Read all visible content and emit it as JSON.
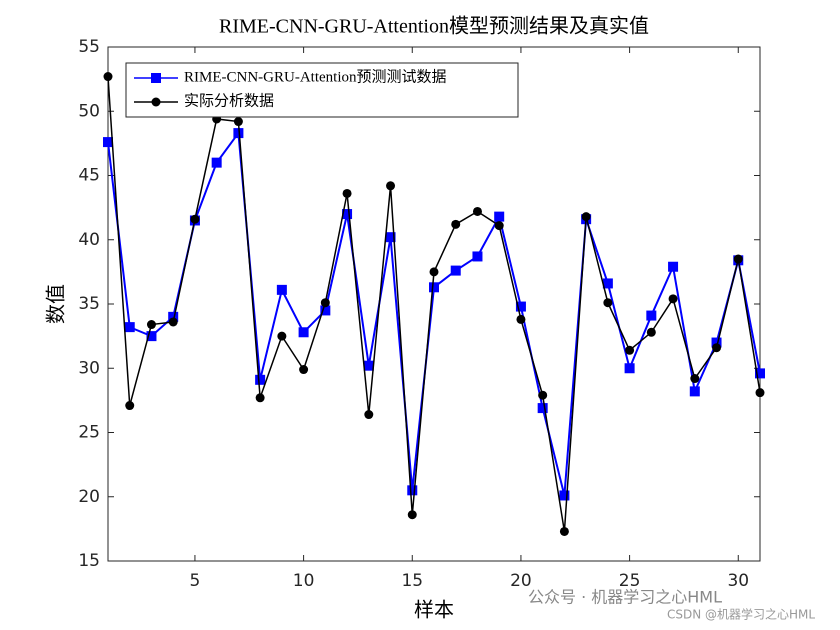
{
  "chart_data": {
    "type": "line",
    "title": "RIME-CNN-GRU-Attention模型预测结果及真实值",
    "x_label": "样本",
    "y_label": "数值",
    "x": [
      1,
      2,
      3,
      4,
      5,
      6,
      7,
      8,
      9,
      10,
      11,
      12,
      13,
      14,
      15,
      16,
      17,
      18,
      19,
      20,
      21,
      22,
      23,
      24,
      25,
      26,
      27,
      28,
      29,
      30,
      31
    ],
    "series": [
      {
        "name": "RIME-CNN-GRU-Attention预测测试数据",
        "color": "#0000ff",
        "marker": "square",
        "values": [
          47.6,
          33.2,
          32.5,
          34.0,
          41.5,
          46.0,
          48.3,
          29.1,
          36.1,
          32.8,
          34.5,
          42.0,
          30.2,
          40.2,
          20.5,
          36.3,
          37.6,
          38.7,
          41.8,
          34.8,
          26.9,
          20.1,
          41.6,
          36.6,
          30.0,
          34.1,
          37.9,
          28.2,
          32.0,
          38.4,
          29.6
        ]
      },
      {
        "name": "实际分析数据",
        "color": "#000000",
        "marker": "circle",
        "values": [
          52.7,
          27.1,
          33.4,
          33.6,
          41.6,
          49.4,
          49.2,
          27.7,
          32.5,
          29.9,
          35.1,
          43.6,
          26.4,
          44.2,
          18.6,
          37.5,
          41.2,
          42.2,
          41.1,
          33.8,
          27.9,
          17.3,
          41.8,
          35.1,
          31.4,
          32.8,
          35.4,
          29.2,
          31.6,
          38.5,
          28.1
        ]
      }
    ],
    "xlim": [
      1,
      31
    ],
    "xticks": [
      5,
      10,
      15,
      20,
      25,
      30
    ],
    "ylim": [
      15,
      55
    ],
    "yticks": [
      15,
      20,
      25,
      30,
      35,
      40,
      45,
      50,
      55
    ],
    "legend": "upper left",
    "annotations": [
      "公众号 · 机器学习之心HML",
      "CSDN @机器学习之心HML"
    ]
  }
}
